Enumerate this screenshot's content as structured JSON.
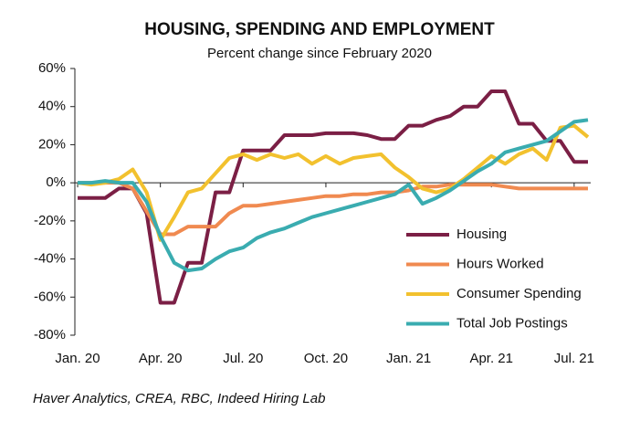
{
  "chart_data": {
    "type": "line",
    "title": "HOUSING, SPENDING AND EMPLOYMENT",
    "subtitle": "Percent change since February 2020",
    "source": "Haver Analytics, CREA, RBC, Indeed Hiring Lab",
    "x": [
      0,
      0.5,
      1,
      1.5,
      2,
      2.5,
      3,
      3.5,
      4,
      4.5,
      5,
      5.5,
      6,
      6.5,
      7,
      7.5,
      8,
      8.5,
      9,
      9.5,
      10,
      10.5,
      11,
      11.5,
      12,
      12.5,
      13,
      13.5,
      14,
      14.5,
      15,
      15.5,
      16,
      16.5,
      17,
      17.5,
      18,
      18.5
    ],
    "xlim": [
      -0.1,
      18.6
    ],
    "xticks": [
      {
        "value": 0,
        "label": "Jan. 20"
      },
      {
        "value": 3,
        "label": "Apr. 20"
      },
      {
        "value": 6,
        "label": "Jul. 20"
      },
      {
        "value": 9,
        "label": "Oct. 20"
      },
      {
        "value": 12,
        "label": "Jan. 21"
      },
      {
        "value": 15,
        "label": "Apr. 21"
      },
      {
        "value": 18,
        "label": "Jul. 21"
      }
    ],
    "ylim": [
      -80,
      60
    ],
    "yticks": [
      {
        "value": -80,
        "label": "-80%"
      },
      {
        "value": -60,
        "label": "-60%"
      },
      {
        "value": -40,
        "label": "-40%"
      },
      {
        "value": -20,
        "label": "-20%"
      },
      {
        "value": 0,
        "label": "0%"
      },
      {
        "value": 20,
        "label": "20%"
      },
      {
        "value": 40,
        "label": "40%"
      },
      {
        "value": 60,
        "label": "60%"
      }
    ],
    "series": [
      {
        "name": "Housing",
        "color": "#7b1f45",
        "values": [
          -8,
          -8,
          -8,
          -3,
          -3,
          -16,
          -63,
          -63,
          -42,
          -42,
          -5,
          -5,
          17,
          17,
          17,
          25,
          25,
          25,
          26,
          26,
          26,
          25,
          23,
          23,
          30,
          30,
          33,
          35,
          40,
          40,
          48,
          48,
          31,
          31,
          22,
          22,
          11,
          11
        ]
      },
      {
        "name": "Hours Worked",
        "color": "#f08a50",
        "values": [
          0,
          0,
          0,
          0,
          -3,
          -15,
          -27,
          -27,
          -23,
          -23,
          -23,
          -16,
          -12,
          -12,
          -11,
          -10,
          -9,
          -8,
          -7,
          -7,
          -6,
          -6,
          -5,
          -5,
          -4,
          -2,
          -2,
          -1,
          -1,
          -1,
          -1,
          -2,
          -3,
          -3,
          -3,
          -3,
          -3,
          -3
        ]
      },
      {
        "name": "Consumer Spending",
        "color": "#f2c12e",
        "values": [
          0,
          -1,
          0,
          2,
          7,
          -5,
          -30,
          -18,
          -5,
          -3,
          5,
          13,
          15,
          12,
          15,
          13,
          15,
          10,
          14,
          10,
          13,
          14,
          15,
          8,
          3,
          -3,
          -5,
          -3,
          2,
          8,
          14,
          10,
          15,
          18,
          12,
          29,
          30,
          24
        ]
      },
      {
        "name": "Total Job Postings",
        "color": "#3aacb0",
        "values": [
          0,
          0,
          1,
          0,
          0,
          -10,
          -28,
          -42,
          -46,
          -45,
          -40,
          -36,
          -34,
          -29,
          -26,
          -24,
          -21,
          -18,
          -16,
          -14,
          -12,
          -10,
          -8,
          -6,
          -1,
          -11,
          -8,
          -4,
          1,
          6,
          10,
          16,
          18,
          20,
          22,
          27,
          32,
          33
        ]
      }
    ]
  }
}
